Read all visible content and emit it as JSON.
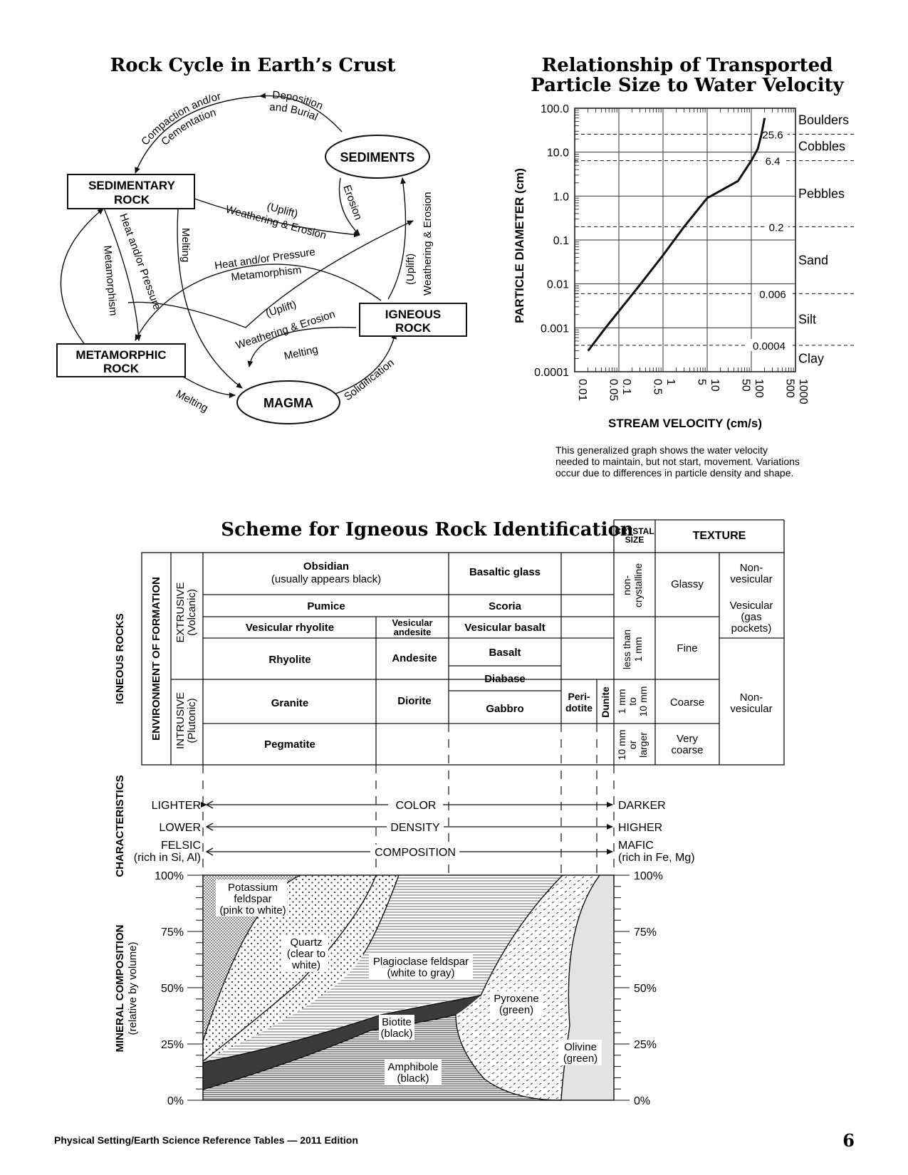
{
  "rock_cycle": {
    "title": "Rock Cycle in Earth’s Crust",
    "nodes": {
      "sediments": "SEDIMENTS",
      "sedimentary_1": "SEDIMENTARY",
      "sedimentary_2": "ROCK",
      "igneous_1": "IGNEOUS",
      "igneous_2": "ROCK",
      "metamorphic_1": "METAMORPHIC",
      "metamorphic_2": "ROCK",
      "magma": "MAGMA"
    },
    "labels": {
      "deposition_1": "Deposition",
      "deposition_2": "and Burial",
      "compaction_1": "Compaction and/or",
      "compaction_2": "Cementation",
      "erosion": "Erosion",
      "uplift_weathering_1a": "(Uplift)",
      "uplift_weathering_1b": "Weathering & Erosion",
      "heat_pressure_1a": "Heat and/or Pressure",
      "heat_pressure_1b": "Metamorphism",
      "uplift_weathering_2a": "(Uplift)",
      "uplift_weathering_2b": "Weathering & Erosion",
      "uplift_weathering_3a": "(Uplift)",
      "uplift_weathering_3b": "Weathering & Erosion",
      "heat_pressure_2a": "Heat and/or Pressure",
      "heat_pressure_2b": "Metamorphism",
      "melting_1": "Melting",
      "melting_2": "Melting",
      "melting_3": "Melting",
      "solidification": "Solidification"
    }
  },
  "particle_graph": {
    "title_1": "Relationship of Transported",
    "title_2": "Particle Size to Water Velocity",
    "y_axis_label": "PARTICLE DIAMETER (cm)",
    "x_axis_label": "STREAM VELOCITY (cm/s)",
    "y_ticks": [
      "100.0",
      "10.0",
      "1.0",
      "0.1",
      "0.01",
      "0.001",
      "0.0001"
    ],
    "x_ticks": [
      "0.01",
      "0.05",
      "0.1",
      "0.5",
      "1",
      "5",
      "10",
      "50",
      "100",
      "500",
      "1000"
    ],
    "classes": [
      "Boulders",
      "Cobbles",
      "Pebbles",
      "Sand",
      "Silt",
      "Clay"
    ],
    "boundaries": [
      "25.6",
      "6.4",
      "0.2",
      "0.006",
      "0.0004"
    ],
    "note_1": "This generalized graph shows the water velocity",
    "note_2": "needed to maintain, but not start, movement. Variations",
    "note_3": "occur due to differences in particle density and  shape."
  },
  "chart_data": {
    "type": "line",
    "title": "Relationship of Transported Particle Size to Water Velocity",
    "xlabel": "STREAM VELOCITY (cm/s)",
    "ylabel": "PARTICLE DIAMETER (cm)",
    "x_scale": "log",
    "y_scale": "log",
    "xlim": [
      0.01,
      1000
    ],
    "ylim": [
      0.0001,
      100
    ],
    "series": [
      {
        "x": [
          0.02,
          0.05,
          0.1,
          0.3,
          1,
          3,
          10,
          50,
          100,
          140,
          170,
          200
        ],
        "y": [
          0.0003,
          0.001,
          0.0024,
          0.0095,
          0.045,
          0.2,
          0.9,
          2.2,
          6.4,
          12,
          25.6,
          60
        ]
      }
    ]
  },
  "igneous_scheme": {
    "title": "Scheme for Igneous Rock Identification",
    "side_igneous": "IGNEOUS ROCKS",
    "side_environment": "ENVIRONMENT OF FORMATION",
    "extrusive_1": "EXTRUSIVE",
    "extrusive_2": "(Volcanic)",
    "intrusive_1": "INTRUSIVE",
    "intrusive_2": "(Plutonic)",
    "crystal_size_1": "CRYSTAL",
    "crystal_size_2": "SIZE",
    "texture_header": "TEXTURE",
    "rocks": {
      "obsidian": "Obsidian",
      "obsidian_note": "(usually appears black)",
      "basaltic_glass": "Basaltic glass",
      "pumice": "Pumice",
      "scoria": "Scoria",
      "vesicular_rhyolite": "Vesicular rhyolite",
      "vesicular_andesite_1": "Vesicular",
      "vesicular_andesite_2": "andesite",
      "vesicular_basalt": "Vesicular basalt",
      "rhyolite": "Rhyolite",
      "andesite": "Andesite",
      "basalt": "Basalt",
      "diabase": "Diabase",
      "granite": "Granite",
      "diorite": "Diorite",
      "gabbro": "Gabbro",
      "peridotite_1": "Peri-",
      "peridotite_2": "dotite",
      "dunite": "Dunite",
      "pegmatite": "Pegmatite"
    },
    "crystal_sizes": {
      "noncrystalline_1": "non-",
      "noncrystalline_2": "crystalline",
      "less_1": "less than",
      "less_2": "1 mm",
      "mm_1": "1 mm",
      "mm_2": "to",
      "mm_3": "10 mm",
      "large_1": "10 mm",
      "large_2": "or",
      "large_3": "larger"
    },
    "textures": {
      "glassy": "Glassy",
      "fine": "Fine",
      "coarse": "Coarse",
      "very_coarse_1": "Very",
      "very_coarse_2": "coarse",
      "nonvesicular_1a": "Non-",
      "nonvesicular_1b": "vesicular",
      "vesicular_1": "Vesicular",
      "vesicular_2": "(gas",
      "vesicular_3": "pockets)",
      "nonvesicular_2a": "Non-",
      "nonvesicular_2b": "vesicular"
    },
    "characteristics": {
      "side_label": "CHARACTERISTICS",
      "lighter": "LIGHTER",
      "color": "COLOR",
      "darker": "DARKER",
      "lower": "LOWER",
      "density": "DENSITY",
      "higher": "HIGHER",
      "felsic_1": "FELSIC",
      "felsic_2": "(rich in Si, Al)",
      "composition": "COMPOSITION",
      "mafic_1": "MAFIC",
      "mafic_2": "(rich in Fe, Mg)"
    },
    "minerals": {
      "side_1": "MINERAL COMPOSITION",
      "side_2": "(relative by volume)",
      "pct": [
        "100%",
        "75%",
        "50%",
        "25%",
        "0%"
      ],
      "potassium_1": "Potassium",
      "potassium_2": "feldspar",
      "potassium_3": "(pink to white)",
      "quartz_1": "Quartz",
      "quartz_2": "(clear to",
      "quartz_3": "white)",
      "plagioclase_1": "Plagioclase feldspar",
      "plagioclase_2": "(white to gray)",
      "biotite_1": "Biotite",
      "biotite_2": "(black)",
      "amphibole_1": "Amphibole",
      "amphibole_2": "(black)",
      "pyroxene_1": "Pyroxene",
      "pyroxene_2": "(green)",
      "olivine_1": "Olivine",
      "olivine_2": "(green)"
    }
  },
  "footer": {
    "left": "Physical Setting/Earth Science Reference Tables — 2011 Edition",
    "page": "6"
  }
}
